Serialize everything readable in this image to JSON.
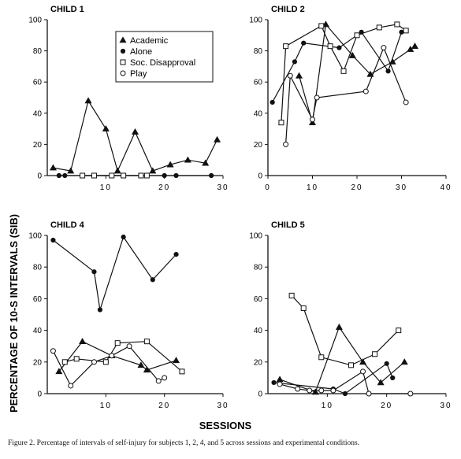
{
  "figure": {
    "ylabel": "PERCENTAGE OF 10-S INTERVALS (SIB)",
    "xlabel": "SESSIONS",
    "caption": "Figure 2.   Percentage of intervals of self-injury for subjects 1, 2, 4, and 5 across sessions and experimental conditions."
  },
  "legend": [
    "Academic",
    "Alone",
    "Soc. Disapproval",
    "Play"
  ],
  "chart_data": [
    {
      "type": "line",
      "title": "CHILD 1",
      "xlim": [
        0,
        30
      ],
      "ylim": [
        0,
        100
      ],
      "xticks": [
        10,
        20,
        30
      ],
      "yticks": [
        0,
        20,
        40,
        60,
        80,
        100
      ],
      "series": [
        {
          "name": "Academic",
          "marker": "triangle",
          "points": [
            [
              1,
              5
            ],
            [
              4,
              3
            ],
            [
              7,
              48
            ],
            [
              10,
              30
            ],
            [
              12,
              3
            ],
            [
              15,
              28
            ],
            [
              18,
              3
            ],
            [
              21,
              7
            ],
            [
              24,
              10
            ],
            [
              27,
              8
            ],
            [
              29,
              23
            ]
          ]
        },
        {
          "name": "Alone",
          "marker": "circle",
          "points": [
            [
              2,
              0
            ],
            [
              3,
              0
            ],
            [
              20,
              0
            ],
            [
              22,
              0
            ],
            [
              28,
              0
            ]
          ]
        },
        {
          "name": "Soc. Disapproval",
          "marker": "square",
          "points": [
            [
              6,
              0
            ],
            [
              8,
              0
            ],
            [
              11,
              0
            ],
            [
              13,
              0
            ],
            [
              16,
              0
            ],
            [
              17,
              0
            ]
          ]
        },
        {
          "name": "Play",
          "marker": "open-circle",
          "points": []
        }
      ]
    },
    {
      "type": "line",
      "title": "CHILD 2",
      "xlim": [
        0,
        40
      ],
      "ylim": [
        0,
        100
      ],
      "xticks": [
        0,
        10,
        20,
        30,
        40
      ],
      "yticks": [
        0,
        20,
        40,
        60,
        80,
        100
      ],
      "series": [
        {
          "name": "Academic",
          "marker": "triangle",
          "points": [
            [
              7,
              64
            ],
            [
              10,
              34
            ],
            [
              13,
              97
            ],
            [
              19,
              77
            ],
            [
              23,
              65
            ],
            [
              28,
              73
            ],
            [
              32,
              81
            ],
            [
              33,
              83
            ]
          ]
        },
        {
          "name": "Alone",
          "marker": "circle",
          "points": [
            [
              1,
              47
            ],
            [
              6,
              73
            ],
            [
              8,
              85
            ],
            [
              16,
              82
            ],
            [
              21,
              92
            ],
            [
              27,
              67
            ],
            [
              30,
              92
            ]
          ]
        },
        {
          "name": "Soc. Disapproval",
          "marker": "square",
          "points": [
            [
              3,
              34
            ],
            [
              4,
              83
            ],
            [
              12,
              96
            ],
            [
              14,
              83
            ],
            [
              17,
              67
            ],
            [
              20,
              90
            ],
            [
              25,
              95
            ],
            [
              29,
              97
            ],
            [
              31,
              93
            ]
          ]
        },
        {
          "name": "Play",
          "marker": "open-circle",
          "points": [
            [
              4,
              20
            ],
            [
              5,
              64
            ],
            [
              10,
              36
            ],
            [
              11,
              50
            ],
            [
              22,
              54
            ],
            [
              26,
              82
            ],
            [
              31,
              47
            ]
          ]
        }
      ]
    },
    {
      "type": "line",
      "title": "CHILD 4",
      "xlim": [
        0,
        30
      ],
      "ylim": [
        0,
        100
      ],
      "xticks": [
        10,
        20,
        30
      ],
      "yticks": [
        0,
        20,
        40,
        60,
        80,
        100
      ],
      "series": [
        {
          "name": "Academic",
          "marker": "triangle",
          "points": [
            [
              2,
              14
            ],
            [
              6,
              33
            ],
            [
              11,
              24
            ],
            [
              16,
              18
            ],
            [
              17,
              15
            ],
            [
              22,
              21
            ]
          ]
        },
        {
          "name": "Alone",
          "marker": "circle",
          "points": [
            [
              1,
              97
            ],
            [
              8,
              77
            ],
            [
              9,
              53
            ],
            [
              13,
              99
            ],
            [
              18,
              72
            ],
            [
              22,
              88
            ]
          ]
        },
        {
          "name": "Soc. Disapproval",
          "marker": "square",
          "points": [
            [
              3,
              20
            ],
            [
              5,
              22
            ],
            [
              10,
              20
            ],
            [
              12,
              32
            ],
            [
              17,
              33
            ],
            [
              23,
              14
            ]
          ]
        },
        {
          "name": "Play",
          "marker": "open-circle",
          "points": [
            [
              1,
              27
            ],
            [
              4,
              5
            ],
            [
              8,
              20
            ],
            [
              11,
              24
            ],
            [
              14,
              30
            ],
            [
              19,
              8
            ],
            [
              20,
              10
            ]
          ]
        }
      ]
    },
    {
      "type": "line",
      "title": "CHILD 5",
      "xlim": [
        0,
        30
      ],
      "ylim": [
        0,
        100
      ],
      "xticks": [
        10,
        20,
        30
      ],
      "yticks": [
        0,
        20,
        40,
        60,
        80,
        100
      ],
      "series": [
        {
          "name": "Academic",
          "marker": "triangle",
          "points": [
            [
              2,
              9
            ],
            [
              8,
              1
            ],
            [
              12,
              42
            ],
            [
              16,
              20
            ],
            [
              19,
              7
            ],
            [
              23,
              20
            ]
          ]
        },
        {
          "name": "Alone",
          "marker": "circle",
          "points": [
            [
              1,
              7
            ],
            [
              11,
              3
            ],
            [
              13,
              0
            ],
            [
              20,
              19
            ],
            [
              21,
              10
            ]
          ]
        },
        {
          "name": "Soc. Disapproval",
          "marker": "square",
          "points": [
            [
              4,
              62
            ],
            [
              6,
              54
            ],
            [
              9,
              23
            ],
            [
              14,
              18
            ],
            [
              18,
              25
            ],
            [
              22,
              40
            ]
          ]
        },
        {
          "name": "Play",
          "marker": "open-circle",
          "points": [
            [
              2,
              6
            ],
            [
              5,
              3
            ],
            [
              7,
              2
            ],
            [
              9,
              2
            ],
            [
              11,
              2
            ],
            [
              16,
              14
            ],
            [
              17,
              0
            ],
            [
              24,
              0
            ]
          ]
        }
      ]
    }
  ]
}
